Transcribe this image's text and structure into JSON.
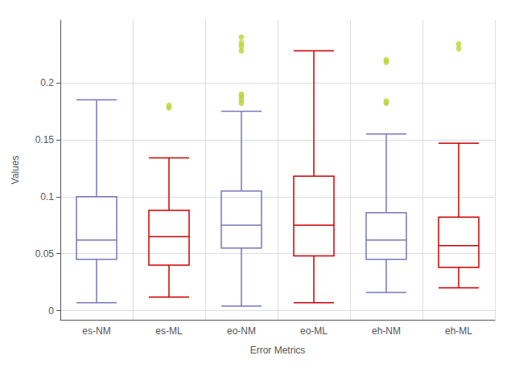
{
  "chart_data": {
    "type": "boxplot",
    "categories": [
      "es-NM",
      "es-ML",
      "eo-NM",
      "eo-ML",
      "eh-NM",
      "eh-ML"
    ],
    "colors": [
      "#7777bb",
      "#cc0000",
      "#7777bb",
      "#cc0000",
      "#7777bb",
      "#cc0000"
    ],
    "boxes": [
      {
        "q1": 0.045,
        "median": 0.062,
        "q3": 0.1,
        "whisker_low": 0.007,
        "whisker_high": 0.185,
        "outliers": []
      },
      {
        "q1": 0.04,
        "median": 0.065,
        "q3": 0.088,
        "whisker_low": 0.012,
        "whisker_high": 0.134,
        "outliers": [
          0.178,
          0.18
        ]
      },
      {
        "q1": 0.055,
        "median": 0.075,
        "q3": 0.105,
        "whisker_low": 0.004,
        "whisker_high": 0.175,
        "outliers": [
          0.182,
          0.185,
          0.188,
          0.19,
          0.228,
          0.232,
          0.235,
          0.24
        ]
      },
      {
        "q1": 0.048,
        "median": 0.075,
        "q3": 0.118,
        "whisker_low": 0.007,
        "whisker_high": 0.228,
        "outliers": []
      },
      {
        "q1": 0.045,
        "median": 0.062,
        "q3": 0.086,
        "whisker_low": 0.016,
        "whisker_high": 0.155,
        "outliers": [
          0.182,
          0.184,
          0.218,
          0.22
        ]
      },
      {
        "q1": 0.038,
        "median": 0.057,
        "q3": 0.082,
        "whisker_low": 0.02,
        "whisker_high": 0.147,
        "outliers": [
          0.23,
          0.234
        ]
      }
    ],
    "ylabel": "Values",
    "xlabel": "Error Metrics",
    "ylim": [
      -0.008,
      0.255
    ],
    "yticks": [
      0,
      0.05,
      0.1,
      0.15,
      0.2
    ],
    "grid": true
  }
}
